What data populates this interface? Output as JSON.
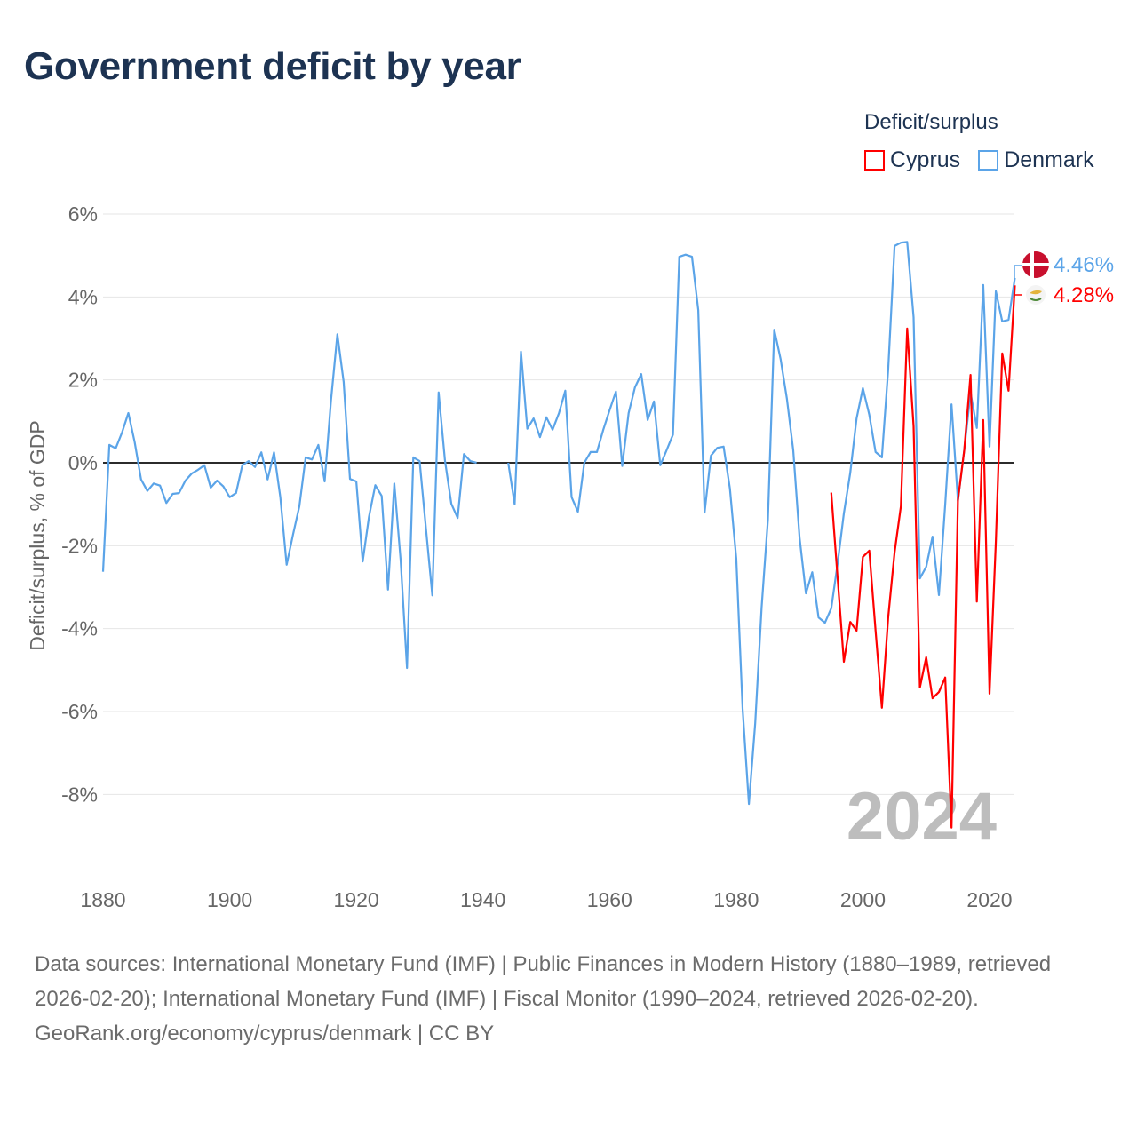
{
  "title": "Government deficit by year",
  "legend": {
    "title": "Deficit/surplus",
    "items": [
      {
        "label": "Cyprus",
        "color": "#ff0000"
      },
      {
        "label": "Denmark",
        "color": "#5ba4e8"
      }
    ]
  },
  "chart_data": {
    "type": "line",
    "title": "Government deficit by year",
    "xlabel": "",
    "ylabel": "Deficit/surplus, % of GDP",
    "xlim": [
      1880,
      2024
    ],
    "ylim": [
      -8,
      6
    ],
    "x_ticks": [
      "1880",
      "1900",
      "1920",
      "1940",
      "1960",
      "1980",
      "2000",
      "2020"
    ],
    "y_ticks": [
      "6%",
      "4%",
      "2%",
      "0%",
      "-2%",
      "-4%",
      "-6%",
      "-8%"
    ],
    "grid": true,
    "year_watermark": "2024",
    "series": [
      {
        "name": "Denmark",
        "color": "#5ba4e8",
        "start": 1880,
        "end_label": "4.46%",
        "flag": "denmark-flag",
        "values": [
          -2.63,
          0.43,
          0.35,
          0.73,
          1.2,
          0.5,
          -0.4,
          -0.68,
          -0.5,
          -0.55,
          -0.97,
          -0.75,
          -0.73,
          -0.43,
          -0.26,
          -0.17,
          -0.06,
          -0.6,
          -0.43,
          -0.57,
          -0.83,
          -0.73,
          -0.06,
          0.04,
          -0.1,
          0.25,
          -0.4,
          0.25,
          -0.83,
          -2.46,
          -1.73,
          -1.05,
          0.13,
          0.08,
          0.43,
          -0.45,
          1.5,
          3.1,
          1.95,
          -0.39,
          -0.45,
          -2.38,
          -1.3,
          -0.54,
          -0.8,
          -3.06,
          -0.5,
          -2.34,
          -4.95,
          0.13,
          0.04,
          -1.6,
          -3.2,
          1.7,
          0.06,
          -0.99,
          -1.33,
          0.21,
          0.04,
          0.0,
          null,
          null,
          null,
          null,
          0.0,
          -1.0,
          2.68,
          0.82,
          1.07,
          0.62,
          1.1,
          0.8,
          1.2,
          1.74,
          -0.83,
          -1.18,
          0.0,
          0.26,
          0.26,
          0.8,
          1.27,
          1.72,
          -0.08,
          1.2,
          1.82,
          2.14,
          1.03,
          1.48,
          -0.06,
          0.3,
          0.68,
          4.97,
          5.02,
          4.97,
          3.68,
          -1.2,
          0.17,
          0.36,
          0.39,
          -0.62,
          -2.31,
          -5.93,
          -8.23,
          -6.28,
          -3.49,
          -1.37,
          3.21,
          2.5,
          1.54,
          0.3,
          -1.8,
          -3.15,
          -2.64,
          -3.73,
          -3.86,
          -3.51,
          -2.44,
          -1.22,
          -0.24,
          1.07,
          1.8,
          1.16,
          0.26,
          0.13,
          2.25,
          5.23,
          5.31,
          5.33,
          3.51,
          -2.79,
          -2.51,
          -1.78,
          -3.19,
          -1.0,
          1.41,
          -0.92,
          0.3,
          1.69,
          0.84,
          4.29,
          0.39,
          4.14,
          3.41,
          3.45,
          4.46
        ]
      },
      {
        "name": "Cyprus",
        "color": "#ff0000",
        "start": 1995,
        "end_label": "4.28%",
        "flag": "cyprus-flag",
        "values": [
          -0.72,
          -2.76,
          -4.8,
          -3.84,
          -4.05,
          -2.27,
          -2.12,
          -4.05,
          -5.91,
          -3.73,
          -2.16,
          -1.05,
          3.24,
          0.88,
          -5.42,
          -4.69,
          -5.68,
          -5.53,
          -5.18,
          -8.8,
          -0.9,
          0.3,
          2.12,
          -3.35,
          1.03,
          -5.57,
          -1.9,
          2.64,
          1.74,
          4.28
        ]
      }
    ]
  },
  "footer": {
    "sources": "Data sources: International Monetary Fund (IMF) | Public Finances in Modern History (1880–1989, retrieved 2026-02-20); International Monetary Fund (IMF) | Fiscal Monitor (1990–2024, retrieved 2026-02-20).",
    "link": "GeoRank.org/economy/cyprus/denmark",
    "license": " | CC BY"
  }
}
